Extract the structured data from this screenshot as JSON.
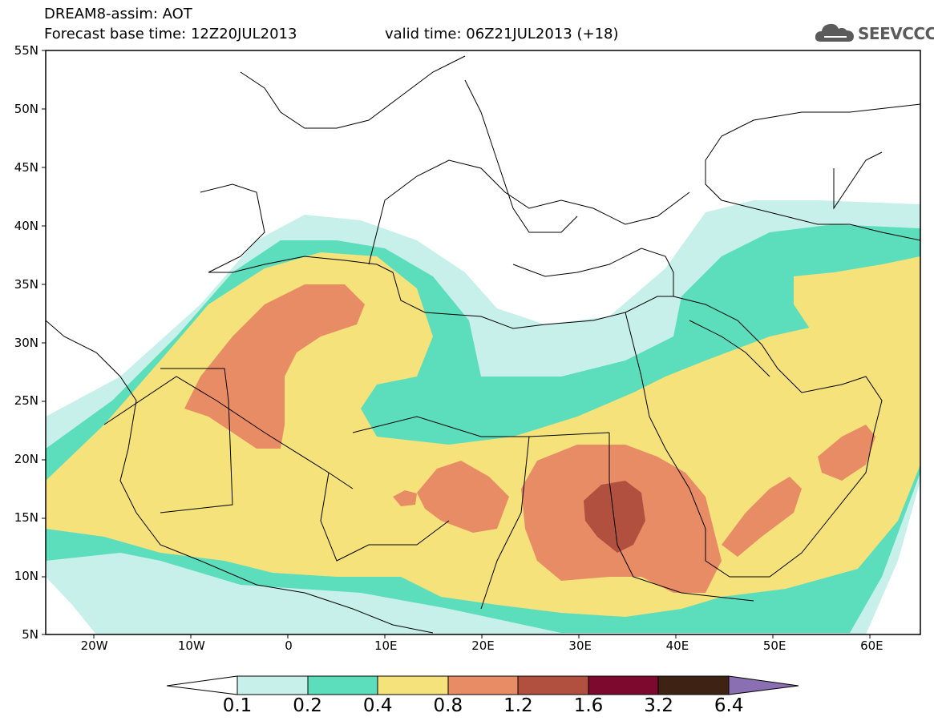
{
  "header": {
    "title_line1": "DREAM8-assim: AOT",
    "base_time": "Forecast base time: 12Z20JUL2013",
    "valid_time": "valid time: 06Z21JUL2013 (+18)",
    "logo_text": "SEEVCCC",
    "logo_icon": "cloud-icon"
  },
  "map": {
    "lat_labels": [
      "55N",
      "50N",
      "45N",
      "40N",
      "35N",
      "30N",
      "25N",
      "20N",
      "15N",
      "10N",
      "5N"
    ],
    "lon_labels": [
      "20W",
      "10W",
      "0",
      "10E",
      "20E",
      "30E",
      "40E",
      "50E",
      "60E"
    ],
    "extent": {
      "lon_min": -25,
      "lon_max": 65,
      "lat_min": 5,
      "lat_max": 55
    }
  },
  "colorbar": {
    "labels": [
      "0.1",
      "0.2",
      "0.4",
      "0.8",
      "1.2",
      "1.6",
      "3.2",
      "6.4"
    ],
    "colors": [
      "#ffffff",
      "#c8f0ea",
      "#5cdebc",
      "#f5e27a",
      "#e88c66",
      "#b2503f",
      "#7d0a2e",
      "#3e2314",
      "#8a6fb3"
    ]
  },
  "levels": {
    "l1": "#c8f0ea",
    "l2": "#5cdebc",
    "l3": "#f5e27a",
    "l4": "#e88c66",
    "l5": "#b2503f"
  }
}
